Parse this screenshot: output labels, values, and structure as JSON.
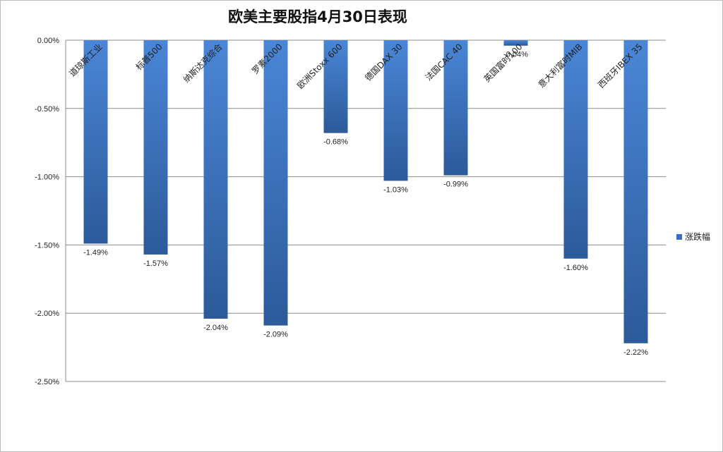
{
  "chart_data": {
    "type": "bar",
    "title": "欧美主要股指4月30日表现",
    "categories": [
      "道琼斯工业",
      "标普500",
      "纳斯达克综合",
      "罗素2000",
      "欧洲Stoxx 600",
      "德国DAX 30",
      "法国CAC 40",
      "英国富时100",
      "意大利富时MIB",
      "西班牙IBEX 35"
    ],
    "series": [
      {
        "name": "涨跌幅",
        "values": [
          -1.49,
          -1.57,
          -2.04,
          -2.09,
          -0.68,
          -1.03,
          -0.99,
          -0.04,
          -1.6,
          -2.22
        ],
        "labels": [
          "-1.49%",
          "-1.57%",
          "-2.04%",
          "-2.09%",
          "-0.68%",
          "-1.03%",
          "-0.99%",
          "-0.04%",
          "-1.60%",
          "-2.22%"
        ]
      }
    ],
    "ylim": [
      -2.5,
      0
    ],
    "yticks": [
      "0.00%",
      "-0.50%",
      "-1.00%",
      "-1.50%",
      "-2.00%",
      "-2.50%"
    ],
    "grid": true,
    "legend": "right",
    "colors": {
      "bar_top": "#4a86d6",
      "bar_bottom": "#2c5a9a",
      "grid": "#8c8c8c"
    }
  }
}
